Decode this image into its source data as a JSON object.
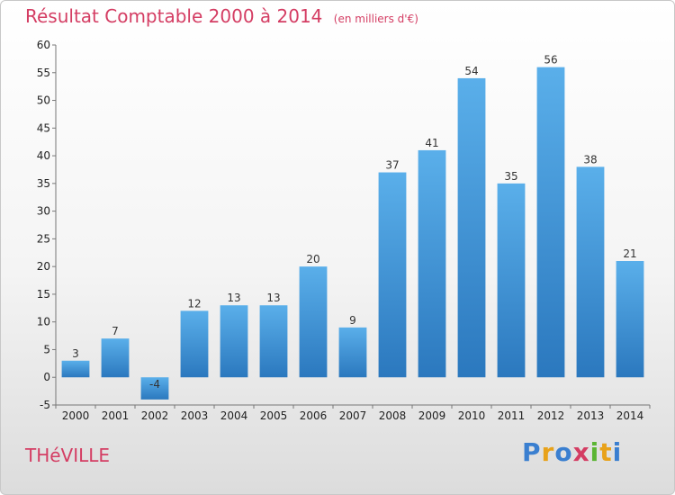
{
  "chart_data": {
    "type": "bar",
    "title": "Résultat Comptable 2000 à 2014",
    "subtitle": "(en milliers d'€)",
    "xlabel": "",
    "ylabel": "",
    "categories": [
      "2000",
      "2001",
      "2002",
      "2003",
      "2004",
      "2005",
      "2006",
      "2007",
      "2008",
      "2009",
      "2010",
      "2011",
      "2012",
      "2013",
      "2014"
    ],
    "values": [
      3,
      7,
      -4,
      12,
      13,
      13,
      20,
      9,
      37,
      41,
      54,
      35,
      56,
      38,
      21
    ],
    "ylim": [
      -5,
      60
    ],
    "yticks": [
      -5,
      0,
      5,
      10,
      15,
      20,
      25,
      30,
      35,
      40,
      45,
      50,
      55,
      60
    ],
    "grid": false,
    "bar_color": "#3a8fd6"
  },
  "footer": {
    "commune": "THéVILLE",
    "brand_letters": [
      {
        "char": "P",
        "color": "#3a7fd0"
      },
      {
        "char": "r",
        "color": "#e8a21a"
      },
      {
        "char": "o",
        "color": "#3a7fd0"
      },
      {
        "char": "x",
        "color": "#d43d63"
      },
      {
        "char": "i",
        "color": "#5bb533"
      },
      {
        "char": "t",
        "color": "#e8a21a"
      },
      {
        "char": "i",
        "color": "#3a7fd0"
      }
    ]
  }
}
